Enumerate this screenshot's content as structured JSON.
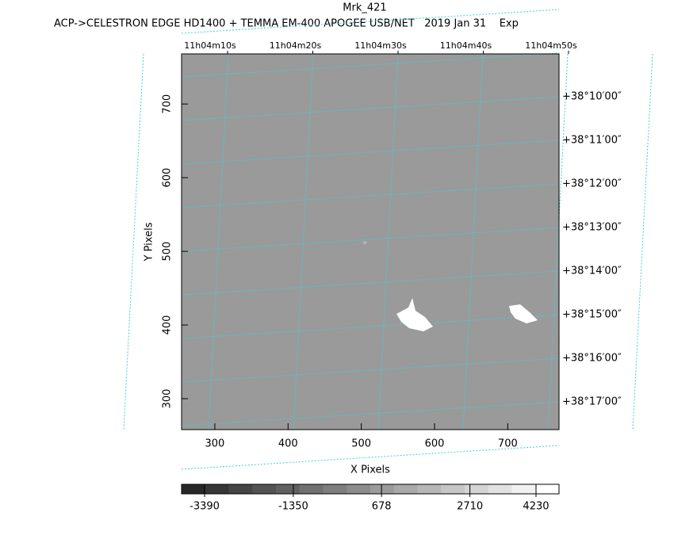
{
  "chart_data": {
    "type": "image",
    "title": "Mrk_421",
    "subtitle": "ACP->CELESTRON EDGE HD1400 + TEMMA EM-400 APOGEE USB/NET   2019 Jan 31    Exp",
    "x_label": "X Pixels",
    "y_label": "Y Pixels",
    "xlim": [
      254.6,
      770
    ],
    "ylim": [
      258,
      768
    ],
    "xticks": [
      300,
      400,
      500,
      600,
      700
    ],
    "yticks": [
      300,
      400,
      500,
      600,
      700
    ],
    "top_labels": [
      "11h04m10s",
      "11h04m20s",
      "11h04m30s",
      "11h04m40s",
      "11h04m50s"
    ],
    "right_labels": [
      "+38°10′00″",
      "+38°11′00″",
      "+38°12′00″",
      "+38°13′00″",
      "+38°14′00″",
      "+38°15′00″",
      "+38°16′00″",
      "+38°17′00″"
    ],
    "colorbar": {
      "clim": [
        -3919,
        4759
      ],
      "ticks": [
        -3390,
        -1350,
        678,
        2710,
        4230
      ]
    }
  }
}
